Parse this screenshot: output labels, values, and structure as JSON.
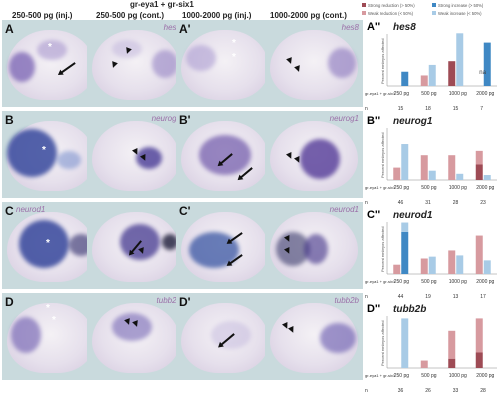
{
  "headers": {
    "group_label": "gr-eya1 + gr-six1",
    "col1": "250-500 pg (inj.)",
    "col2": "250-500 pg (cont.)",
    "col3": "1000-2000 pg (inj.)",
    "col4": "1000-2000 pg (cont.)"
  },
  "legend": {
    "items": [
      {
        "label": "Strong reduction (> 50%)",
        "color": "#9e4b55"
      },
      {
        "label": "Weak reduction (< 50%)",
        "color": "#d79a9f"
      },
      {
        "label": "Strong increase (> 50%)",
        "color": "#3f88c4"
      },
      {
        "label": "Weak increase (< 50%)",
        "color": "#a8cbe6"
      }
    ]
  },
  "rows": [
    {
      "panel1": "A",
      "panel2": "A'",
      "gene": "hes8",
      "stain": "#6b55a8",
      "stain_strength": 0.7
    },
    {
      "panel1": "B",
      "panel2": "B'",
      "gene": "neurog1",
      "stain": "#2e3f9a",
      "stain_strength": 0.85
    },
    {
      "panel1": "C",
      "panel2": "C'",
      "gene": "neurod1",
      "stain": "#3a4fa0",
      "stain_strength": 0.8
    },
    {
      "panel1": "D",
      "panel2": "D'",
      "gene": "tubb2b",
      "stain": "#7a68b6",
      "stain_strength": 0.5
    }
  ],
  "chart_data": [
    {
      "type": "bar",
      "panel": "A''",
      "title": "hes8",
      "ylabel": "Percent embryos affected",
      "ylim": [
        0,
        100
      ],
      "row_label": "gr-eya1 + gr-six1",
      "categories": [
        "250 pg",
        "500 pg",
        "1000 pg",
        "2000 pg"
      ],
      "n_label": "n",
      "n": [
        "15",
        "18",
        "15",
        "7"
      ],
      "na": [
        "",
        "",
        "",
        "na"
      ],
      "series": [
        {
          "name": "Strong reduction (> 50%)",
          "values": [
            0,
            0,
            40,
            0
          ]
        },
        {
          "name": "Weak reduction (< 50%)",
          "values": [
            0,
            17,
            0,
            0
          ]
        },
        {
          "name": "Strong increase (> 50%)",
          "values": [
            23,
            0,
            0,
            70
          ]
        },
        {
          "name": "Weak increase (< 50%)",
          "values": [
            0,
            34,
            85,
            0
          ]
        }
      ]
    },
    {
      "type": "bar",
      "panel": "B''",
      "title": "neurog1",
      "ylabel": "Percent embryos affected",
      "ylim": [
        0,
        100
      ],
      "row_label": "gr-eya1 + gr-six1",
      "categories": [
        "250 pg",
        "500 pg",
        "1000 pg",
        "2000 pg"
      ],
      "n_label": "n",
      "n": [
        "46",
        "31",
        "28",
        "23"
      ],
      "na": [
        "",
        "",
        "",
        ""
      ],
      "series": [
        {
          "name": "Strong reduction (> 50%)",
          "values": [
            0,
            0,
            0,
            25
          ]
        },
        {
          "name": "Weak reduction (< 50%)",
          "values": [
            20,
            40,
            40,
            22
          ]
        },
        {
          "name": "Strong increase (> 50%)",
          "values": [
            0,
            0,
            0,
            0
          ]
        },
        {
          "name": "Weak increase (< 50%)",
          "values": [
            58,
            15,
            10,
            8
          ]
        }
      ]
    },
    {
      "type": "bar",
      "panel": "C''",
      "title": "neurod1",
      "ylabel": "Percent embryos affected",
      "ylim": [
        0,
        100
      ],
      "row_label": "gr-eya1 + gr-six1",
      "categories": [
        "250 pg",
        "500 pg",
        "1000 pg",
        "2000 pg"
      ],
      "n_label": "n",
      "n": [
        "44",
        "19",
        "13",
        "17"
      ],
      "na": [
        "",
        "",
        "",
        ""
      ],
      "series": [
        {
          "name": "Strong reduction (> 50%)",
          "values": [
            0,
            0,
            0,
            0
          ]
        },
        {
          "name": "Weak reduction (< 50%)",
          "values": [
            15,
            25,
            38,
            62
          ]
        },
        {
          "name": "Strong increase (> 50%)",
          "values": [
            68,
            0,
            0,
            0
          ]
        },
        {
          "name": "Weak increase (< 50%)",
          "values": [
            15,
            28,
            30,
            22
          ]
        }
      ]
    },
    {
      "type": "bar",
      "panel": "D''",
      "title": "tubb2b",
      "ylabel": "Percent embryos affected",
      "ylim": [
        0,
        100
      ],
      "row_label": "gr-eya1 + gr-six1",
      "categories": [
        "250 pg",
        "500 pg",
        "1000 pg",
        "2000 pg"
      ],
      "n_label": "n",
      "n": [
        "36",
        "26",
        "33",
        "28"
      ],
      "na": [
        "",
        "",
        "",
        ""
      ],
      "series": [
        {
          "name": "Strong reduction (> 50%)",
          "values": [
            0,
            0,
            15,
            25
          ]
        },
        {
          "name": "Weak reduction (< 50%)",
          "values": [
            0,
            12,
            45,
            55
          ]
        },
        {
          "name": "Strong increase (> 50%)",
          "values": [
            0,
            0,
            0,
            0
          ]
        },
        {
          "name": "Weak increase (< 50%)",
          "values": [
            80,
            0,
            0,
            0
          ]
        }
      ]
    }
  ]
}
